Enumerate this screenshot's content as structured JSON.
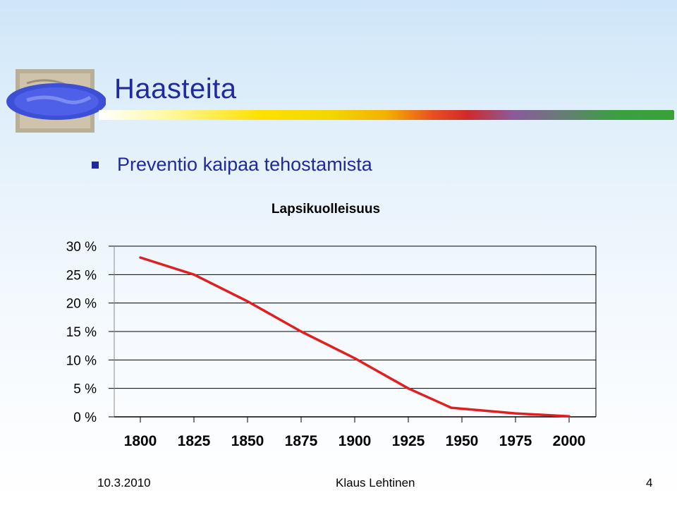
{
  "slide": {
    "title": "Haasteita",
    "bullet": "Preventio kaipaa tehostamista"
  },
  "footer": {
    "date": "10.3.2010",
    "author": "Klaus Lehtinen",
    "page": "4"
  },
  "colors": {
    "title": "#1f2a9e",
    "line": "#e02020"
  },
  "chart_data": {
    "type": "line",
    "title": "Lapsikuolleisuus",
    "xlabel": "",
    "ylabel": "",
    "categories": [
      "1800",
      "1825",
      "1850",
      "1875",
      "1900",
      "1925",
      "1950",
      "1975",
      "2000"
    ],
    "y_tick_labels": [
      "0 %",
      "5 %",
      "10 %",
      "15 %",
      "20 %",
      "25 %",
      "30 %"
    ],
    "y_ticks": [
      0,
      5,
      10,
      15,
      20,
      25,
      30
    ],
    "ylim": [
      0,
      30
    ],
    "series": [
      {
        "points": [
          {
            "x": 1800,
            "y": 28
          },
          {
            "x": 1825,
            "y": 25
          },
          {
            "x": 1850,
            "y": 20.3
          },
          {
            "x": 1875,
            "y": 15
          },
          {
            "x": 1900,
            "y": 10.3
          },
          {
            "x": 1925,
            "y": 5
          },
          {
            "x": 1945,
            "y": 1.6
          },
          {
            "x": 1975,
            "y": 0.6
          },
          {
            "x": 2000,
            "y": 0.1
          }
        ]
      }
    ],
    "grid": true,
    "legend": "none"
  }
}
